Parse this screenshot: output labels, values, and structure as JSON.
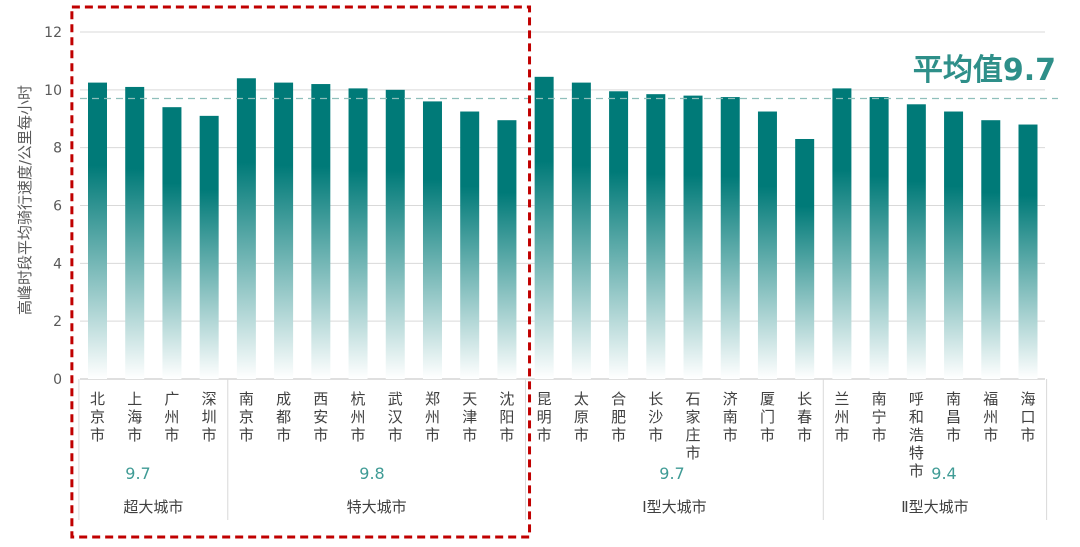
{
  "chart_data": {
    "type": "bar",
    "ylabel": "高峰时段平均骑行速度/公里每小时",
    "ylim": [
      0,
      12
    ],
    "yticks": [
      0,
      2,
      4,
      6,
      8,
      10,
      12
    ],
    "grid": true,
    "bar_gradient": [
      "#007a78",
      "#ffffff"
    ],
    "categories": [
      "北京市",
      "上海市",
      "广州市",
      "深圳市",
      "南京市",
      "成都市",
      "西安市",
      "杭州市",
      "武汉市",
      "郑州市",
      "天津市",
      "沈阳市",
      "昆明市",
      "太原市",
      "合肥市",
      "长沙市",
      "石家庄市",
      "济南市",
      "厦门市",
      "长春市",
      "兰州市",
      "南宁市",
      "呼和浩特市",
      "南昌市",
      "福州市",
      "海口市"
    ],
    "values": [
      10.25,
      10.1,
      9.4,
      9.1,
      10.4,
      10.25,
      10.2,
      10.05,
      10.0,
      9.6,
      9.25,
      8.95,
      10.45,
      10.25,
      9.95,
      9.85,
      9.8,
      9.75,
      9.25,
      8.3,
      10.05,
      9.75,
      9.5,
      9.25,
      8.95,
      8.8
    ],
    "reference_line": {
      "value": 9.7,
      "label": "平均值9.7",
      "color": "#2e8f89"
    },
    "groups": [
      {
        "name": "超大城市",
        "average": "9.7",
        "start": 0,
        "end": 3
      },
      {
        "name": "特大城市",
        "average": "9.8",
        "start": 4,
        "end": 11
      },
      {
        "name": "Ⅰ型大城市",
        "average": "9.7",
        "start": 12,
        "end": 19
      },
      {
        "name": "Ⅱ型大城市",
        "average": "9.4",
        "start": 20,
        "end": 25
      }
    ],
    "highlight": {
      "groups": [
        0,
        1
      ],
      "color": "#c00000"
    }
  }
}
